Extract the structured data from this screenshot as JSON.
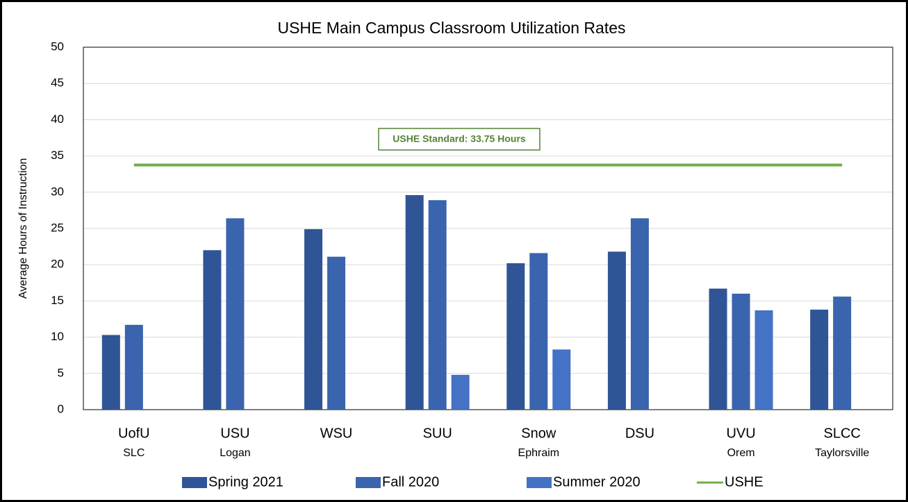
{
  "chart_data": {
    "type": "bar",
    "title": "USHE Main Campus Classroom Utilization Rates",
    "y_label": "Average Hours of Instruction",
    "categories": [
      "UofU",
      "USU",
      "WSU",
      "SUU",
      "Snow",
      "DSU",
      "UVU",
      "SLCC"
    ],
    "category_sublabels": [
      "SLC",
      "Logan",
      null,
      null,
      "Ephraim",
      null,
      "Orem",
      "Taylorsville"
    ],
    "series": [
      {
        "name": "Spring 2021",
        "color": "#2f5597",
        "values": [
          10.3,
          22.0,
          24.9,
          29.6,
          20.2,
          21.8,
          16.7,
          13.8
        ]
      },
      {
        "name": "Fall 2020",
        "color": "#3a64ad",
        "values": [
          11.7,
          26.4,
          21.1,
          28.9,
          21.6,
          26.4,
          16.0,
          15.6
        ]
      },
      {
        "name": "Summer 2020",
        "color": "#4472c4",
        "values": [
          null,
          null,
          null,
          4.8,
          8.3,
          null,
          13.7,
          null
        ]
      },
      {
        "name": "USHE",
        "type": "line",
        "color": "#70ad47",
        "values": [
          33.75,
          33.75,
          33.75,
          33.75,
          33.75,
          33.75,
          33.75,
          33.75
        ]
      }
    ],
    "annotation": "USHE Standard:  33.75 Hours",
    "ylim": [
      0,
      50
    ],
    "yticks": [
      0,
      5,
      10,
      15,
      20,
      25,
      30,
      35,
      40,
      45,
      50
    ],
    "grid": true,
    "legend": "bottom"
  }
}
